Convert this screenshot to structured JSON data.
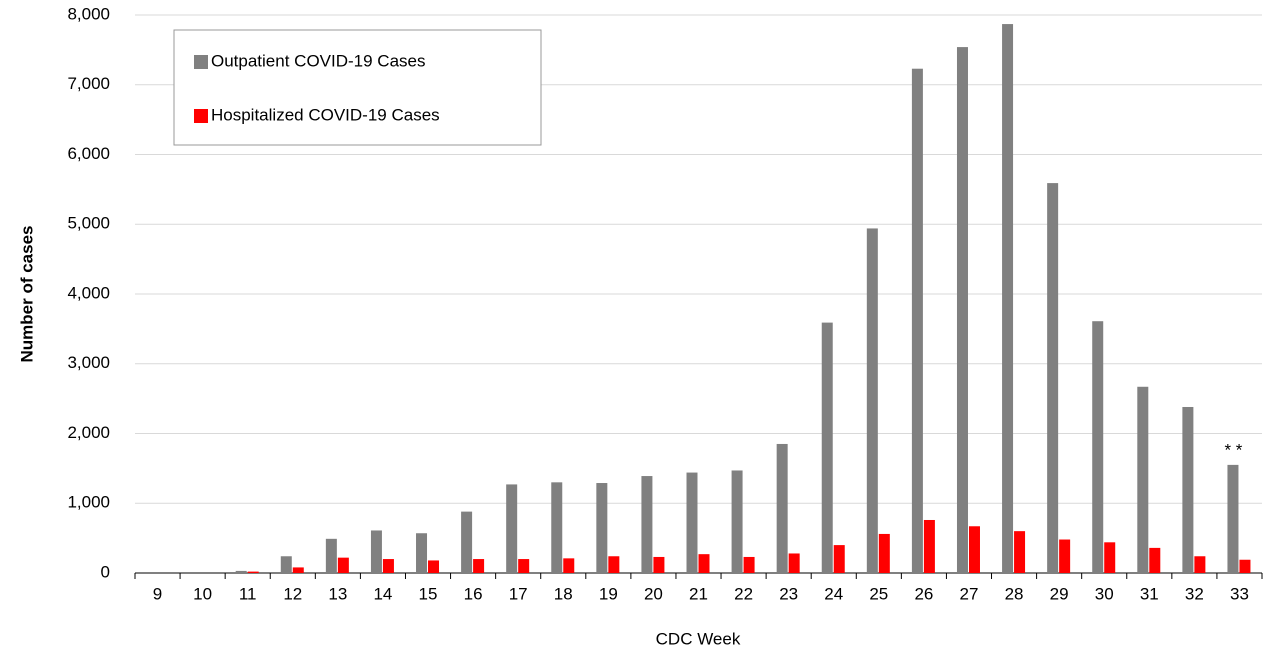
{
  "chart_data": {
    "type": "bar",
    "x_label": "CDC Week",
    "y_label": "Number of cases",
    "categories": [
      "9",
      "10",
      "11",
      "12",
      "13",
      "14",
      "15",
      "16",
      "17",
      "18",
      "19",
      "20",
      "21",
      "22",
      "23",
      "24",
      "25",
      "26",
      "27",
      "28",
      "29",
      "30",
      "31",
      "32",
      "33"
    ],
    "series": [
      {
        "name": "Outpatient COVID-19 Cases",
        "color": "#808080",
        "values": [
          0,
          0,
          30,
          240,
          490,
          610,
          570,
          880,
          1270,
          1300,
          1290,
          1390,
          1440,
          1470,
          1850,
          3590,
          4940,
          7230,
          7540,
          7870,
          5590,
          3610,
          2670,
          2380,
          1550
        ]
      },
      {
        "name": "Hospitalized COVID-19 Cases",
        "color": "#ff0000",
        "values": [
          0,
          0,
          20,
          80,
          220,
          200,
          180,
          200,
          200,
          210,
          240,
          230,
          270,
          230,
          280,
          400,
          560,
          760,
          670,
          600,
          480,
          440,
          360,
          240,
          190
        ]
      }
    ],
    "ylim": [
      0,
      8000
    ],
    "yticks": [
      0,
      {
        "value": 1000,
        "label": "1,000"
      },
      {
        "value": 2000,
        "label": "2,000"
      },
      {
        "value": 3000,
        "label": "3,000"
      },
      {
        "value": 4000,
        "label": "4,000"
      },
      {
        "value": 5000,
        "label": "5,000"
      },
      {
        "value": 6000,
        "label": "6,000"
      },
      {
        "value": 7000,
        "label": "7,000"
      },
      {
        "value": 8000,
        "label": "8,000"
      }
    ],
    "grid": true,
    "legend": "top-left",
    "annotations": [
      {
        "text": "* *",
        "category": "33"
      }
    ]
  }
}
